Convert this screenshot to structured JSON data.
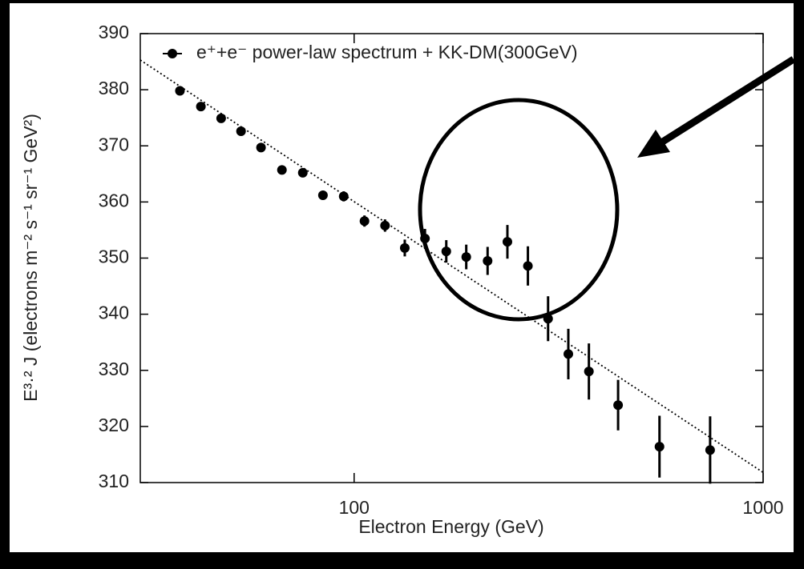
{
  "chart_data": {
    "type": "scatter",
    "x_label": "Electron Energy (GeV)",
    "y_label": "E³·² J (electrons m⁻² s⁻¹ sr⁻¹ GeV²)",
    "xscale": "log",
    "xlim": [
      30,
      1000
    ],
    "xticks": [
      100,
      1000
    ],
    "ylim": [
      310,
      390
    ],
    "yticks": [
      310,
      320,
      330,
      340,
      350,
      360,
      370,
      380,
      390
    ],
    "legend": "top",
    "series": [
      {
        "name": "e⁺+e⁻ power-law spectrum + KK-DM(300GeV)",
        "color": "#000000",
        "x": [
          37.5,
          42.2,
          47.3,
          52.9,
          59.2,
          66.6,
          74.9,
          83.9,
          94.3,
          106,
          119,
          133,
          149,
          168,
          188,
          212,
          237,
          266,
          298,
          334,
          375,
          442,
          558,
          742
        ],
        "values": [
          379.8,
          377.0,
          374.9,
          372.6,
          369.7,
          365.7,
          365.2,
          361.2,
          361.0,
          356.6,
          355.8,
          351.8,
          353.5,
          351.2,
          350.2,
          349.5,
          352.9,
          348.6,
          339.2,
          332.9,
          329.8,
          323.8,
          316.4,
          315.8
        ],
        "errors": [
          0.6,
          0.6,
          0.6,
          0.6,
          0.7,
          0.7,
          0.8,
          0.8,
          0.9,
          1.0,
          1.1,
          1.5,
          1.7,
          2.0,
          2.2,
          2.5,
          3.0,
          3.5,
          4.0,
          4.5,
          5.0,
          4.5,
          5.5,
          6.0
        ]
      }
    ],
    "fit_line": {
      "color": "#000000",
      "x": [
        30,
        1000
      ],
      "values": [
        385.3,
        311.8
      ]
    }
  }
}
